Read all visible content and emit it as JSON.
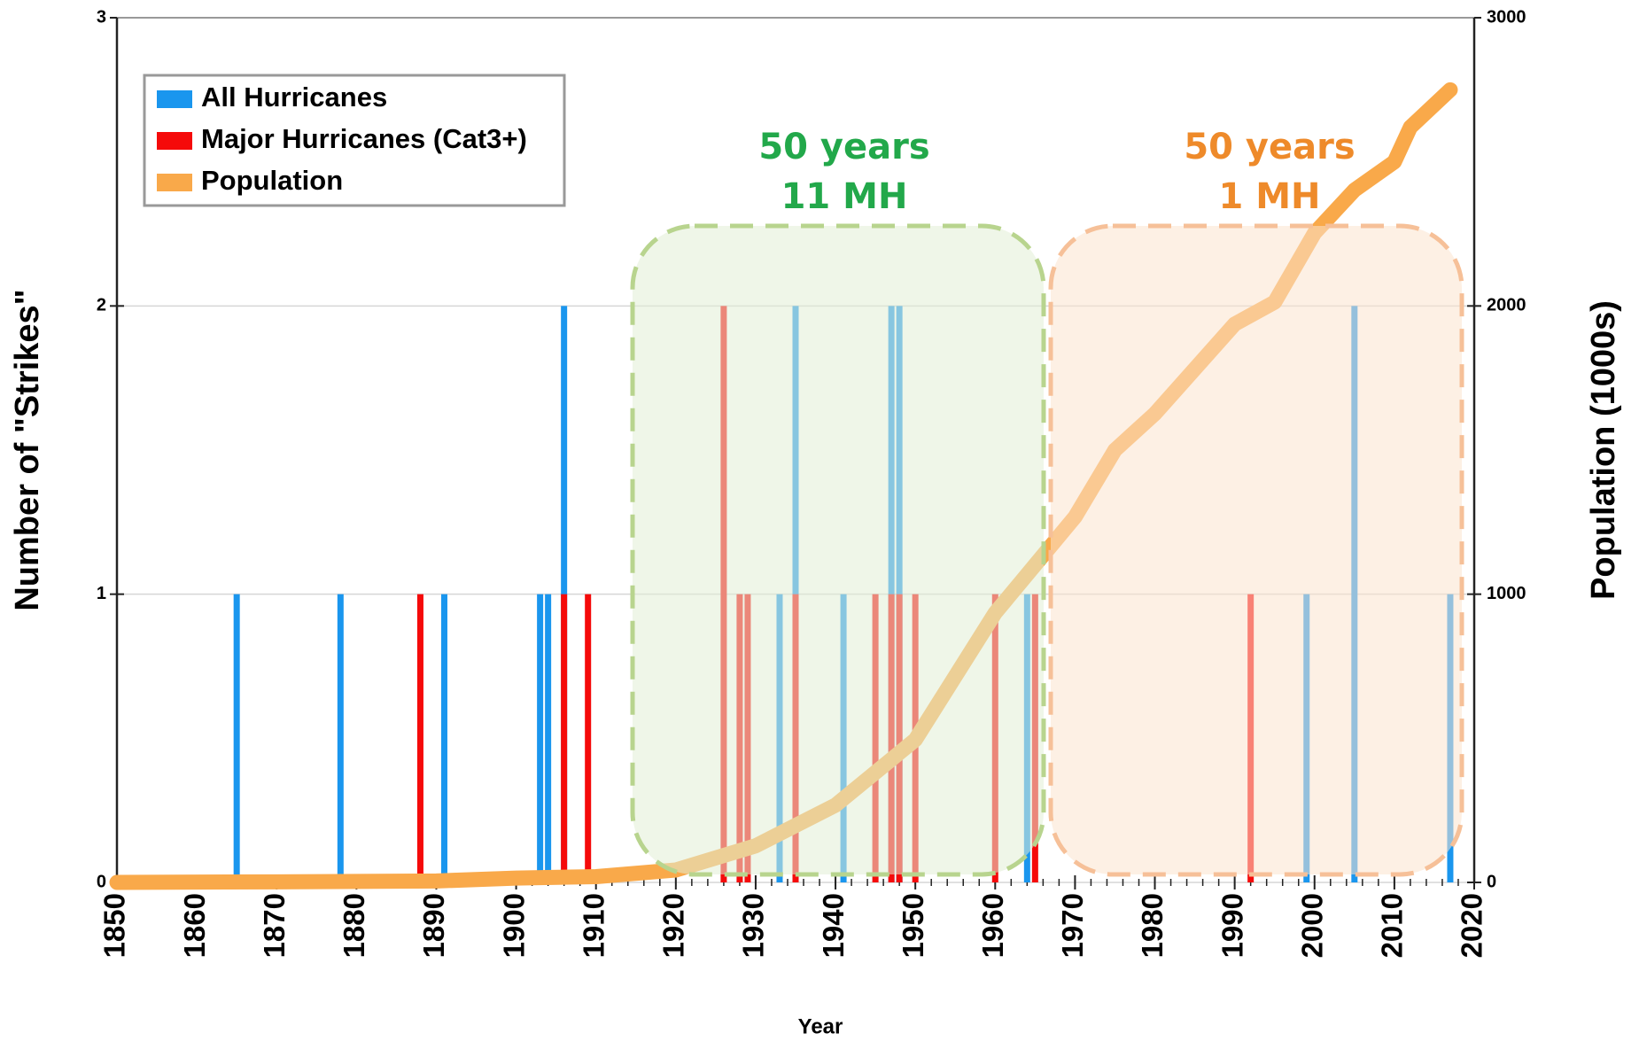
{
  "chart_data": {
    "type": "bar",
    "xlabel": "Year",
    "ylabel": "Number of \"Strikes\"",
    "y2label": "Population (1000s)",
    "xlim": [
      1850,
      2020
    ],
    "xticks": [
      1850,
      1860,
      1870,
      1880,
      1890,
      1900,
      1910,
      1920,
      1930,
      1940,
      1950,
      1960,
      1970,
      1980,
      1990,
      2000,
      2010,
      2020
    ],
    "ylim": [
      0,
      3
    ],
    "yticks": [
      0,
      1,
      2,
      3
    ],
    "y2lim": [
      0,
      3000
    ],
    "y2ticks": [
      0,
      1000,
      2000,
      3000
    ],
    "grid": true,
    "legend": "upper left",
    "series": [
      {
        "name": "All Hurricanes",
        "type": "bar",
        "color": "#1a96ee",
        "x": [
          1865,
          1878,
          1891,
          1903,
          1904,
          1906,
          1933,
          1935,
          1941,
          1947,
          1948,
          1964,
          1999,
          2005,
          2017
        ],
        "values": [
          1,
          1,
          1,
          1,
          1,
          2,
          1,
          2,
          1,
          2,
          2,
          1,
          1,
          2,
          1
        ]
      },
      {
        "name": "Major Hurricanes (Cat3+)",
        "type": "bar",
        "color": "#f50a0a",
        "x": [
          1888,
          1906,
          1909,
          1926,
          1928,
          1929,
          1935,
          1945,
          1947,
          1948,
          1950,
          1960,
          1965,
          1992
        ],
        "values": [
          1,
          1,
          1,
          2,
          1,
          1,
          1,
          1,
          1,
          1,
          1,
          1,
          1,
          1
        ]
      },
      {
        "name": "Population",
        "type": "line",
        "axis": "y2",
        "color": "#f9a94a",
        "x": [
          1850,
          1870,
          1890,
          1900,
          1910,
          1920,
          1930,
          1940,
          1950,
          1960,
          1970,
          1975,
          1980,
          1990,
          1995,
          2000,
          2005,
          2010,
          2012,
          2017
        ],
        "values": [
          0,
          2,
          5,
          15,
          20,
          43,
          127,
          268,
          495,
          935,
          1268,
          1500,
          1626,
          1937,
          2013,
          2253,
          2402,
          2500,
          2620,
          2750
        ]
      }
    ],
    "annotations": [
      {
        "lines": [
          "50 years",
          "11 MH"
        ],
        "color": "#22a84a"
      },
      {
        "lines": [
          "50 years",
          "1 MH"
        ],
        "color": "#ee8a2a"
      }
    ]
  }
}
